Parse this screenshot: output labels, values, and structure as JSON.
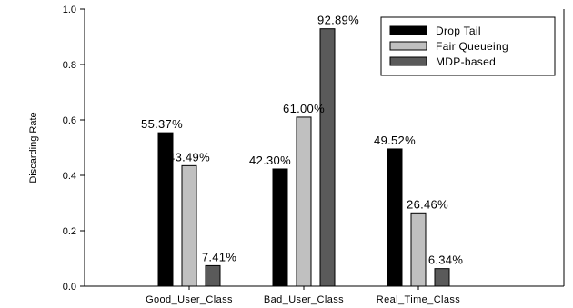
{
  "chart_data": {
    "type": "bar",
    "title": "",
    "xlabel": "",
    "ylabel": "Discarding Rate",
    "ylim": [
      0,
      1.0
    ],
    "yticks": [
      "0.0",
      "0.2",
      "0.4",
      "0.6",
      "0.8",
      "1.0"
    ],
    "categories": [
      "Good_User_Class",
      "Bad_User_Class",
      "Real_Time_Class"
    ],
    "series": [
      {
        "name": "Drop Tail",
        "color": "#000000",
        "values": [
          0.5537,
          0.423,
          0.4952
        ],
        "labels": [
          "55.37%",
          "42.30%",
          "49.52%"
        ]
      },
      {
        "name": "Fair Queueing",
        "color": "#c0c0c0",
        "values": [
          0.4349,
          0.61,
          0.2646
        ],
        "labels": [
          "43.49%",
          "61.00%",
          "26.46%"
        ]
      },
      {
        "name": "MDP-based",
        "color": "#5a5a5a",
        "values": [
          0.0741,
          0.9289,
          0.0634
        ],
        "labels": [
          "7.41%",
          "92.89%",
          "6.34%"
        ]
      }
    ],
    "grid": false,
    "legend_position": "top-right"
  }
}
